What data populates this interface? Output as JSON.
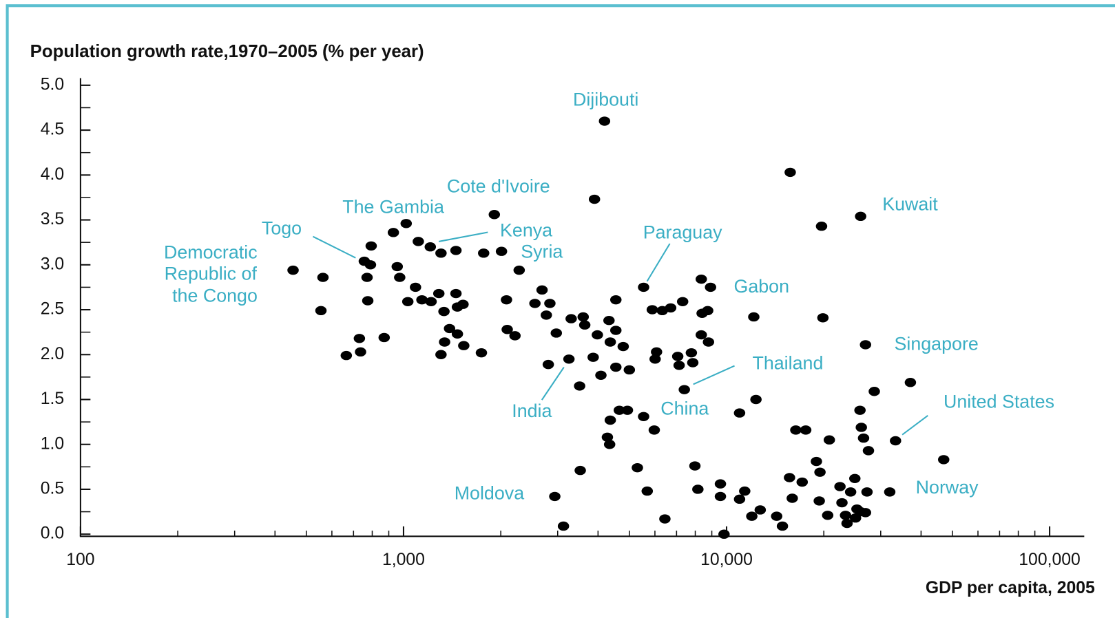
{
  "chart_data": {
    "type": "scatter",
    "title": "Population growth rate,1970–2005 (% per year)",
    "x_label": "GDP per capita, 2005",
    "x_log": true,
    "color": "#000000",
    "annotation_color": "#3aaec4",
    "xlim": [
      100,
      128000
    ],
    "xticks": [
      100,
      {
        "value": 1000,
        "label": "1,000"
      },
      {
        "value": 10000,
        "label": "10,000"
      },
      {
        "value": 100000,
        "label": "100,000"
      }
    ],
    "ylim": [
      0,
      5
    ],
    "yticks": [
      {
        "value": 0,
        "label": "0.0"
      },
      0.5,
      {
        "value": 1,
        "label": "1.0"
      },
      1.5,
      {
        "value": 2,
        "label": "2.0"
      },
      2.5,
      {
        "value": 3,
        "label": "3.0"
      },
      3.5,
      {
        "value": 4,
        "label": "4.0"
      },
      4.5,
      {
        "value": 5,
        "label": "5.0"
      }
    ],
    "annotations": [
      "Dijibouti",
      "Cote d'Ivoire",
      "The Gambia",
      "Togo",
      "Kenya",
      "Syria",
      "Democratic",
      "Republic of",
      "the Congo",
      "Paraguay",
      "Gabon",
      "Singapore",
      "Thailand",
      "India",
      "China",
      "United States",
      "Kuwait",
      "Moldova",
      "Norway"
    ],
    "x": [
      455,
      563,
      555,
      665,
      736,
      730,
      871,
      775,
      771,
      756,
      790,
      794,
      930,
      1019,
      956,
      973,
      1089,
      1031,
      1140,
      1217,
      1111,
      1210,
      1306,
      1453,
      1286,
      1334,
      1453,
      1468,
      1528,
      1388,
      1468,
      1340,
      1306,
      1536,
      1742,
      1770,
      1910,
      2010,
      2280,
      2083,
      2094,
      2213,
      2551,
      2684,
      2838,
      2767,
      2971,
      2806,
      3251,
      3303,
      3598,
      3639,
      3508,
      3524,
      2939,
      3126,
      3900,
      4190,
      3981,
      4325,
      4542,
      4542,
      4365,
      4786,
      3864,
      4083,
      4542,
      5000,
      4365,
      4656,
      4932,
      4276,
      4345,
      5295,
      5680,
      5535,
      5535,
      5888,
      6324,
      6714,
      6070,
      6009,
      5972,
      6442,
      7311,
      7060,
      7130,
      7780,
      7860,
      7400,
      8350,
      8920,
      8740,
      8400,
      8350,
      8790,
      7980,
      8150,
      9570,
      9570,
      9820,
      11380,
      10970,
      10970,
      12140,
      12330,
      12710,
      11970,
      14290,
      14890,
      15740,
      15660,
      15970,
      16380,
      17580,
      17140,
      19680,
      19870,
      18970,
      19460,
      20800,
      19360,
      20560,
      22440,
      22760,
      23350,
      23600,
      24210,
      24950,
      25330,
      25070,
      26000,
      26920,
      27210,
      25880,
      26130,
      26550,
      27490,
      26000,
      26920,
      28660,
      32000,
      33340,
      37070,
      47000
    ],
    "values": [
      2.94,
      2.86,
      2.49,
      1.99,
      2.03,
      2.18,
      2.19,
      2.6,
      2.86,
      3.04,
      3.0,
      3.21,
      3.36,
      3.46,
      2.98,
      2.86,
      2.75,
      2.59,
      2.61,
      2.59,
      3.26,
      3.2,
      3.13,
      3.16,
      2.68,
      2.48,
      2.68,
      2.53,
      2.56,
      2.29,
      2.23,
      2.14,
      2.0,
      2.1,
      2.02,
      3.13,
      3.56,
      3.15,
      2.94,
      2.61,
      2.28,
      2.21,
      2.57,
      2.72,
      2.57,
      2.44,
      2.24,
      1.89,
      1.95,
      2.4,
      2.42,
      2.33,
      1.65,
      0.71,
      0.42,
      0.09,
      3.73,
      4.6,
      2.22,
      2.38,
      2.61,
      2.27,
      2.14,
      2.09,
      1.97,
      1.77,
      1.86,
      1.83,
      1.27,
      1.38,
      1.38,
      1.08,
      1.0,
      0.74,
      0.48,
      1.31,
      2.75,
      2.5,
      2.49,
      2.52,
      2.03,
      1.95,
      1.16,
      0.17,
      2.59,
      1.98,
      1.88,
      2.02,
      1.91,
      1.61,
      2.84,
      2.75,
      2.49,
      2.46,
      2.22,
      2.14,
      0.76,
      0.5,
      0.56,
      0.42,
      0.0,
      0.48,
      0.39,
      1.35,
      2.42,
      1.5,
      0.27,
      0.2,
      0.2,
      0.09,
      4.03,
      0.63,
      0.4,
      1.16,
      1.16,
      0.58,
      3.43,
      2.41,
      0.81,
      0.69,
      1.05,
      0.37,
      0.21,
      0.53,
      0.35,
      0.21,
      0.12,
      0.47,
      0.62,
      0.28,
      0.18,
      0.25,
      0.24,
      0.47,
      1.38,
      1.19,
      1.07,
      0.93,
      3.54,
      2.11,
      1.59,
      0.47,
      1.04,
      1.69,
      0.83
    ]
  }
}
